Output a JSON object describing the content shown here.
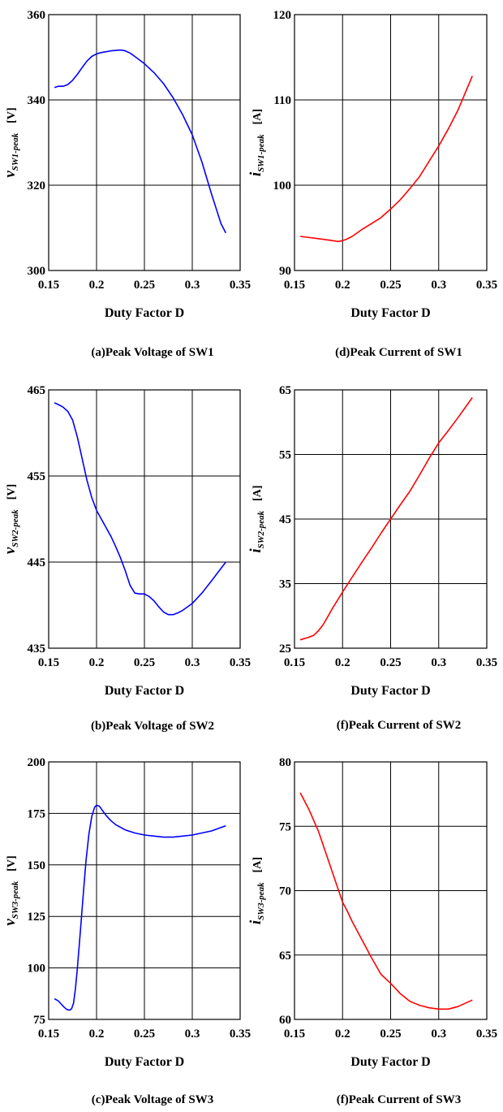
{
  "chart_data": [
    {
      "type": "line",
      "caption": "(a)Peak Voltage of SW1",
      "xlabel": "Duty Factor D",
      "ylabel": {
        "main": "v",
        "sub": "SW1-peak",
        "unit": "[V]"
      },
      "xlim": [
        0.15,
        0.35
      ],
      "ylim": [
        300,
        360
      ],
      "xticks": [
        0.15,
        0.2,
        0.25,
        0.3,
        0.35
      ],
      "xtick_labels": [
        "0.15",
        "0.2",
        "0.25",
        "0.3",
        "0.35"
      ],
      "yticks": [
        300,
        320,
        340,
        360
      ],
      "ytick_labels": [
        "300",
        "320",
        "340",
        "360"
      ],
      "grid": true,
      "color": "#0000ff",
      "series": [
        {
          "x": [
            0.156,
            0.16,
            0.165,
            0.17,
            0.175,
            0.18,
            0.185,
            0.19,
            0.195,
            0.2,
            0.205,
            0.21,
            0.215,
            0.22,
            0.225,
            0.23,
            0.235,
            0.24,
            0.25,
            0.26,
            0.27,
            0.28,
            0.29,
            0.3,
            0.31,
            0.32,
            0.33,
            0.335
          ],
          "y": [
            342.9,
            343.2,
            343.2,
            343.6,
            344.6,
            346,
            347.6,
            349.1,
            350.2,
            350.8,
            351.1,
            351.3,
            351.5,
            351.6,
            351.7,
            351.5,
            351,
            350.2,
            348.5,
            346.4,
            343.8,
            340.5,
            336.5,
            331.8,
            325.5,
            318,
            311,
            308.8
          ]
        }
      ]
    },
    {
      "type": "line",
      "caption": "(d)Peak Current of SW1",
      "xlabel": "Duty Factor D",
      "ylabel": {
        "main": "i",
        "sub": "SW1-peak",
        "unit": "[A]"
      },
      "xlim": [
        0.15,
        0.35
      ],
      "ylim": [
        90,
        120
      ],
      "xticks": [
        0.15,
        0.2,
        0.25,
        0.3,
        0.35
      ],
      "xtick_labels": [
        "0.15",
        "0.2",
        "0.25",
        "0.3",
        "0.35"
      ],
      "yticks": [
        90,
        100,
        110,
        120
      ],
      "ytick_labels": [
        "90",
        "100",
        "110",
        "120"
      ],
      "grid": true,
      "color": "#ff0000",
      "series": [
        {
          "x": [
            0.156,
            0.17,
            0.19,
            0.195,
            0.2,
            0.205,
            0.21,
            0.22,
            0.23,
            0.24,
            0.25,
            0.26,
            0.27,
            0.28,
            0.29,
            0.3,
            0.31,
            0.32,
            0.335
          ],
          "y": [
            94,
            93.8,
            93.5,
            93.4,
            93.5,
            93.7,
            94,
            94.8,
            95.5,
            96.2,
            97.2,
            98.3,
            99.6,
            101,
            102.8,
            104.6,
            106.6,
            108.8,
            112.8
          ]
        }
      ]
    },
    {
      "type": "line",
      "caption": "(b)Peak Voltage of SW2",
      "xlabel": "Duty Factor D",
      "ylabel": {
        "main": "v",
        "sub": "SW2-peak",
        "unit": "[V]"
      },
      "xlim": [
        0.15,
        0.35
      ],
      "ylim": [
        435,
        465
      ],
      "xticks": [
        0.15,
        0.2,
        0.25,
        0.3,
        0.35
      ],
      "xtick_labels": [
        "0.15",
        "0.2",
        "0.25",
        "0.3",
        "0.35"
      ],
      "yticks": [
        435,
        445,
        455,
        465
      ],
      "ytick_labels": [
        "435",
        "445",
        "455",
        "465"
      ],
      "grid": true,
      "color": "#0000ff",
      "series": [
        {
          "x": [
            0.156,
            0.16,
            0.165,
            0.17,
            0.175,
            0.18,
            0.185,
            0.19,
            0.195,
            0.2,
            0.205,
            0.21,
            0.215,
            0.22,
            0.225,
            0.23,
            0.235,
            0.24,
            0.245,
            0.25,
            0.255,
            0.26,
            0.265,
            0.27,
            0.275,
            0.28,
            0.285,
            0.29,
            0.3,
            0.31,
            0.32,
            0.335
          ],
          "y": [
            463.5,
            463.3,
            463,
            462.5,
            461.5,
            459.5,
            457,
            454.5,
            452.5,
            451,
            450,
            449,
            448,
            446.8,
            445.5,
            444,
            442.3,
            441.4,
            441.3,
            441.3,
            441,
            440.5,
            439.8,
            439.2,
            438.9,
            438.9,
            439.1,
            439.4,
            440.2,
            441.4,
            442.8,
            445
          ]
        }
      ]
    },
    {
      "type": "line",
      "caption": "(f)Peak Current of SW2",
      "xlabel": "Duty Factor D",
      "ylabel": {
        "main": "i",
        "sub": "SW2-peak",
        "unit": "[A]"
      },
      "xlim": [
        0.15,
        0.35
      ],
      "ylim": [
        25,
        65
      ],
      "xticks": [
        0.15,
        0.2,
        0.25,
        0.3,
        0.35
      ],
      "xtick_labels": [
        "0.15",
        "0.2",
        "0.25",
        "0.3",
        "0.35"
      ],
      "yticks": [
        25,
        35,
        45,
        55,
        65
      ],
      "ytick_labels": [
        "25",
        "35",
        "45",
        "55",
        "65"
      ],
      "grid": true,
      "color": "#ff0000",
      "series": [
        {
          "x": [
            0.156,
            0.165,
            0.17,
            0.175,
            0.18,
            0.185,
            0.19,
            0.2,
            0.21,
            0.22,
            0.23,
            0.24,
            0.25,
            0.26,
            0.27,
            0.28,
            0.29,
            0.3,
            0.31,
            0.32,
            0.335
          ],
          "y": [
            26.3,
            26.7,
            27,
            27.7,
            28.7,
            30,
            31.3,
            33.7,
            36,
            38.3,
            40.5,
            42.8,
            45,
            47.2,
            49.3,
            51.8,
            54.4,
            56.8,
            58.7,
            60.7,
            63.8
          ]
        }
      ]
    },
    {
      "type": "line",
      "caption": "(c)Peak Voltage of SW3",
      "xlabel": "Duty Factor D",
      "ylabel": {
        "main": "v",
        "sub": "SW3-peak",
        "unit": "[V]"
      },
      "xlim": [
        0.15,
        0.35
      ],
      "ylim": [
        75,
        200
      ],
      "xticks": [
        0.15,
        0.2,
        0.25,
        0.3,
        0.35
      ],
      "xtick_labels": [
        "0.15",
        "0.2",
        "0.25",
        "0.3",
        "0.35"
      ],
      "yticks": [
        75,
        100,
        125,
        150,
        175,
        200
      ],
      "ytick_labels": [
        "75",
        "100",
        "125",
        "150",
        "175",
        "200"
      ],
      "grid": true,
      "color": "#0000ff",
      "series": [
        {
          "x": [
            0.156,
            0.16,
            0.163,
            0.166,
            0.169,
            0.172,
            0.174,
            0.176,
            0.178,
            0.18,
            0.183,
            0.186,
            0.189,
            0.192,
            0.195,
            0.198,
            0.2,
            0.203,
            0.206,
            0.21,
            0.215,
            0.22,
            0.23,
            0.24,
            0.25,
            0.26,
            0.27,
            0.28,
            0.29,
            0.3,
            0.31,
            0.32,
            0.335
          ],
          "y": [
            85,
            84,
            82.5,
            81,
            79.8,
            79.5,
            80.2,
            83,
            90,
            100,
            117,
            135,
            152,
            165,
            173.5,
            178,
            179,
            178.5,
            176.5,
            174,
            171.5,
            169.5,
            167,
            165.5,
            164.5,
            164,
            163.5,
            163.5,
            164,
            164.5,
            165.5,
            166.5,
            169
          ]
        }
      ]
    },
    {
      "type": "line",
      "caption": "(f)Peak Current of SW3",
      "xlabel": "Duty Factor D",
      "ylabel": {
        "main": "i",
        "sub": "SW3-peak",
        "unit": "[A]"
      },
      "xlim": [
        0.15,
        0.35
      ],
      "ylim": [
        60,
        80
      ],
      "xticks": [
        0.15,
        0.2,
        0.25,
        0.3,
        0.35
      ],
      "xtick_labels": [
        "0.15",
        "0.2",
        "0.25",
        "0.3",
        "0.35"
      ],
      "yticks": [
        60,
        65,
        70,
        75,
        80
      ],
      "ytick_labels": [
        "60",
        "65",
        "70",
        "75",
        "80"
      ],
      "grid": true,
      "color": "#ff0000",
      "series": [
        {
          "x": [
            0.156,
            0.165,
            0.175,
            0.185,
            0.195,
            0.2,
            0.205,
            0.21,
            0.22,
            0.23,
            0.24,
            0.25,
            0.26,
            0.27,
            0.28,
            0.29,
            0.3,
            0.31,
            0.32,
            0.335
          ],
          "y": [
            77.6,
            76.3,
            74.6,
            72.4,
            70.2,
            69.1,
            68.4,
            67.6,
            66.2,
            64.8,
            63.5,
            62.8,
            62,
            61.4,
            61.1,
            60.9,
            60.8,
            60.8,
            61,
            61.5
          ]
        }
      ]
    }
  ]
}
